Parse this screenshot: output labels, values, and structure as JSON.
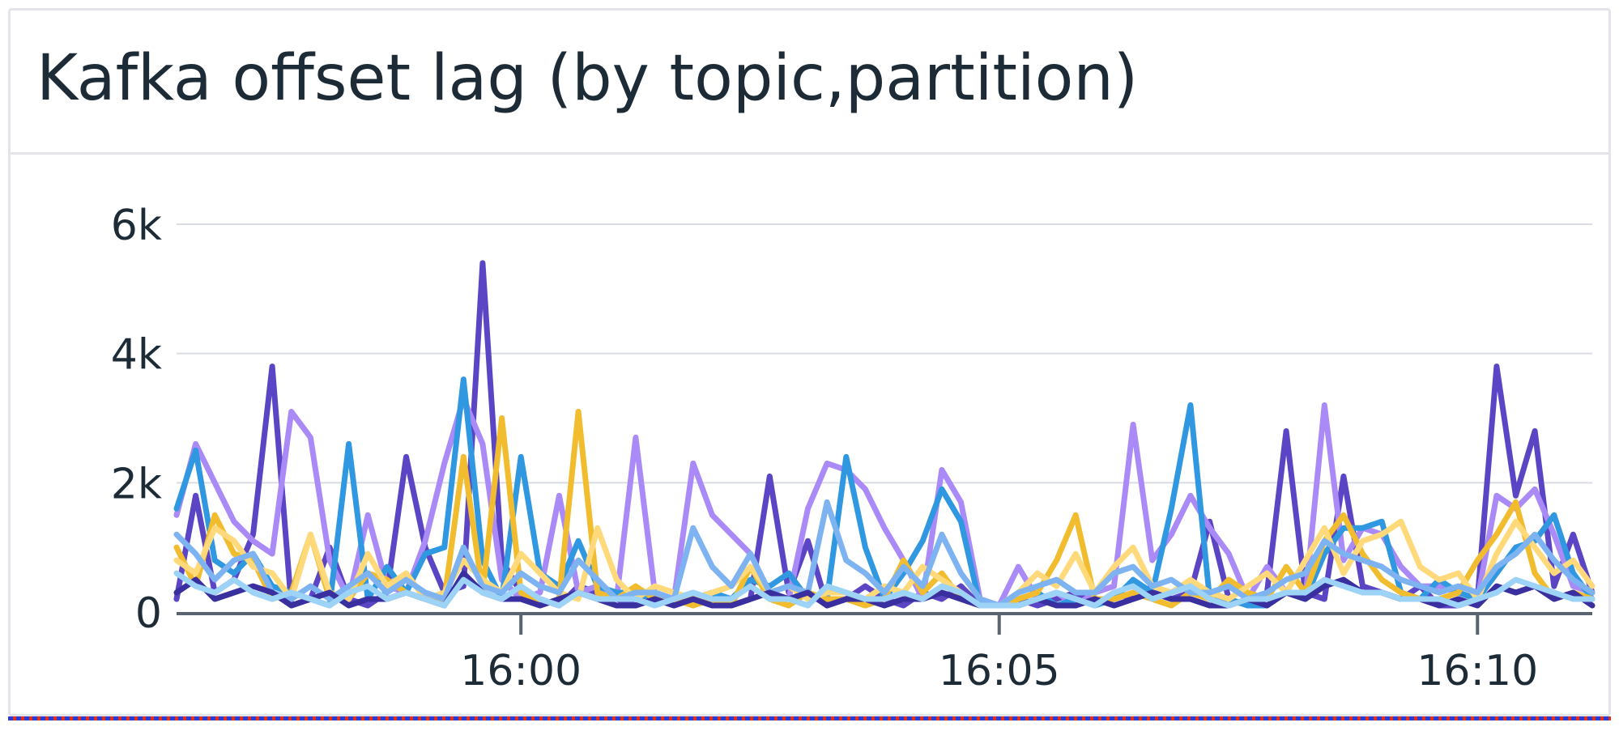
{
  "widget": {
    "title": "Kafka offset lag (by topic,partition)"
  },
  "chart_data": {
    "type": "line",
    "title": "Kafka offset lag (by topic,partition)",
    "xlabel": "",
    "ylabel": "",
    "x": [
      "15:56:24",
      "15:56:36",
      "15:56:48",
      "15:57:00",
      "15:57:12",
      "15:57:24",
      "15:57:36",
      "15:57:48",
      "15:58:00",
      "15:58:12",
      "15:58:24",
      "15:58:36",
      "15:58:48",
      "15:59:00",
      "15:59:12",
      "15:59:24",
      "15:59:36",
      "15:59:48",
      "16:00:00",
      "16:00:12",
      "16:00:24",
      "16:00:36",
      "16:00:48",
      "16:01:00",
      "16:01:12",
      "16:01:24",
      "16:01:36",
      "16:01:48",
      "16:02:00",
      "16:02:12",
      "16:02:24",
      "16:02:36",
      "16:02:48",
      "16:03:00",
      "16:03:12",
      "16:03:24",
      "16:03:36",
      "16:03:48",
      "16:04:00",
      "16:04:12",
      "16:04:24",
      "16:04:36",
      "16:04:48",
      "16:05:00",
      "16:05:12",
      "16:05:24",
      "16:05:36",
      "16:05:48",
      "16:06:00",
      "16:06:12",
      "16:06:24",
      "16:06:36",
      "16:06:48",
      "16:07:00",
      "16:07:12",
      "16:07:24",
      "16:07:36",
      "16:07:48",
      "16:08:00",
      "16:08:12",
      "16:08:24",
      "16:08:36",
      "16:08:48",
      "16:09:00",
      "16:09:12",
      "16:09:24",
      "16:09:36",
      "16:09:48",
      "16:10:00",
      "16:10:12",
      "16:10:24",
      "16:10:36",
      "16:10:48",
      "16:11:00",
      "16:11:12"
    ],
    "x_ticks": [
      "16:00",
      "16:05",
      "16:10"
    ],
    "y_ticks": [
      "0",
      "2k",
      "4k",
      "6k"
    ],
    "ylim": [
      0,
      6000
    ],
    "grid": true,
    "legend": "none",
    "series": [
      {
        "color": "#5b45c4",
        "values": [
          200,
          1800,
          300,
          500,
          1200,
          3800,
          100,
          200,
          1000,
          200,
          100,
          300,
          2400,
          1000,
          300,
          400,
          5400,
          800,
          300,
          200,
          100,
          400,
          300,
          200,
          100,
          300,
          200,
          200,
          300,
          100,
          200,
          2100,
          300,
          1100,
          100,
          200,
          400,
          200,
          100,
          300,
          200,
          400,
          100,
          100,
          200,
          100,
          200,
          300,
          100,
          300,
          200,
          400,
          200,
          300,
          1400,
          200,
          100,
          300,
          2800,
          300,
          200,
          2100,
          400,
          300,
          200,
          400,
          100,
          100,
          200,
          3800,
          1800,
          2800,
          400,
          1200,
          300
        ]
      },
      {
        "color": "#a98af7",
        "values": [
          1500,
          2600,
          2000,
          1400,
          1100,
          900,
          3100,
          2700,
          800,
          200,
          1500,
          400,
          300,
          1100,
          2300,
          3300,
          2600,
          500,
          200,
          300,
          1800,
          300,
          400,
          200,
          2700,
          300,
          200,
          2300,
          1500,
          1200,
          900,
          300,
          200,
          1600,
          2300,
          2200,
          1900,
          1300,
          800,
          200,
          2200,
          1700,
          200,
          100,
          700,
          200,
          300,
          100,
          300,
          400,
          2900,
          800,
          1200,
          1800,
          1300,
          900,
          200,
          700,
          300,
          200,
          3200,
          800,
          1300,
          1200,
          700,
          400,
          400,
          300,
          200,
          1800,
          1600,
          1900,
          1200,
          400,
          300
        ]
      },
      {
        "color": "#2f98e0",
        "values": [
          1600,
          2500,
          800,
          600,
          900,
          400,
          300,
          200,
          100,
          2600,
          200,
          700,
          300,
          900,
          1000,
          3600,
          800,
          200,
          2400,
          600,
          400,
          1100,
          400,
          300,
          300,
          200,
          100,
          200,
          300,
          200,
          500,
          400,
          600,
          200,
          200,
          2400,
          1000,
          200,
          600,
          1100,
          1900,
          1400,
          100,
          100,
          200,
          300,
          100,
          200,
          100,
          200,
          500,
          300,
          1600,
          3200,
          200,
          200,
          100,
          100,
          300,
          200,
          900,
          1300,
          1300,
          1400,
          300,
          200,
          500,
          300,
          200,
          600,
          1000,
          1100,
          1500,
          600,
          200
        ]
      },
      {
        "color": "#f1bc2e",
        "values": [
          1000,
          400,
          1500,
          900,
          800,
          200,
          300,
          1200,
          200,
          200,
          600,
          500,
          300,
          200,
          200,
          2400,
          300,
          3000,
          300,
          100,
          200,
          3100,
          300,
          200,
          400,
          200,
          200,
          100,
          200,
          100,
          700,
          200,
          100,
          300,
          200,
          200,
          100,
          200,
          800,
          300,
          600,
          200,
          100,
          100,
          200,
          300,
          800,
          1500,
          200,
          200,
          300,
          200,
          100,
          300,
          200,
          500,
          300,
          200,
          700,
          300,
          1100,
          1500,
          900,
          500,
          300,
          200,
          200,
          300,
          800,
          1200,
          1700,
          600,
          200,
          300,
          200
        ]
      },
      {
        "color": "#ffd97a",
        "values": [
          800,
          600,
          1300,
          1100,
          700,
          600,
          200,
          1200,
          300,
          200,
          900,
          400,
          600,
          200,
          300,
          800,
          500,
          300,
          900,
          600,
          300,
          200,
          1300,
          500,
          200,
          400,
          300,
          200,
          300,
          400,
          700,
          300,
          400,
          200,
          300,
          300,
          200,
          400,
          300,
          700,
          500,
          300,
          100,
          100,
          300,
          600,
          400,
          900,
          300,
          700,
          1000,
          400,
          300,
          500,
          300,
          200,
          400,
          600,
          300,
          800,
          1300,
          600,
          1100,
          1200,
          1400,
          700,
          500,
          600,
          200,
          900,
          1400,
          1000,
          600,
          800,
          400
        ]
      },
      {
        "color": "#7eb3f2",
        "values": [
          1200,
          900,
          500,
          800,
          900,
          300,
          200,
          400,
          200,
          400,
          600,
          300,
          500,
          300,
          200,
          1000,
          400,
          300,
          600,
          400,
          300,
          800,
          500,
          200,
          300,
          300,
          200,
          1300,
          700,
          400,
          900,
          300,
          400,
          300,
          1700,
          800,
          600,
          300,
          700,
          400,
          1200,
          600,
          200,
          100,
          300,
          400,
          500,
          300,
          300,
          600,
          700,
          400,
          500,
          300,
          300,
          400,
          200,
          300,
          500,
          600,
          1100,
          900,
          800,
          700,
          500,
          400,
          300,
          400,
          300,
          700,
          900,
          1200,
          800,
          500,
          300
        ]
      },
      {
        "color": "#3a2f9e",
        "values": [
          300,
          500,
          200,
          300,
          400,
          300,
          100,
          200,
          300,
          100,
          200,
          200,
          300,
          200,
          100,
          600,
          300,
          200,
          200,
          100,
          200,
          300,
          200,
          100,
          100,
          200,
          100,
          200,
          100,
          100,
          200,
          300,
          200,
          300,
          100,
          200,
          200,
          100,
          200,
          200,
          300,
          200,
          100,
          100,
          100,
          200,
          100,
          100,
          200,
          100,
          200,
          300,
          200,
          200,
          100,
          100,
          200,
          100,
          300,
          200,
          400,
          500,
          300,
          300,
          200,
          200,
          100,
          200,
          100,
          400,
          300,
          400,
          200,
          300,
          100
        ]
      },
      {
        "color": "#9dd3f7",
        "values": [
          600,
          400,
          300,
          500,
          300,
          200,
          300,
          200,
          100,
          300,
          400,
          200,
          300,
          200,
          100,
          500,
          300,
          200,
          400,
          200,
          100,
          300,
          200,
          200,
          200,
          100,
          200,
          300,
          200,
          200,
          400,
          200,
          200,
          100,
          400,
          300,
          200,
          200,
          300,
          200,
          400,
          300,
          100,
          100,
          100,
          200,
          300,
          200,
          100,
          300,
          400,
          200,
          300,
          400,
          200,
          100,
          200,
          200,
          300,
          300,
          500,
          400,
          300,
          300,
          200,
          200,
          200,
          100,
          200,
          300,
          500,
          400,
          300,
          200,
          200
        ]
      }
    ]
  }
}
